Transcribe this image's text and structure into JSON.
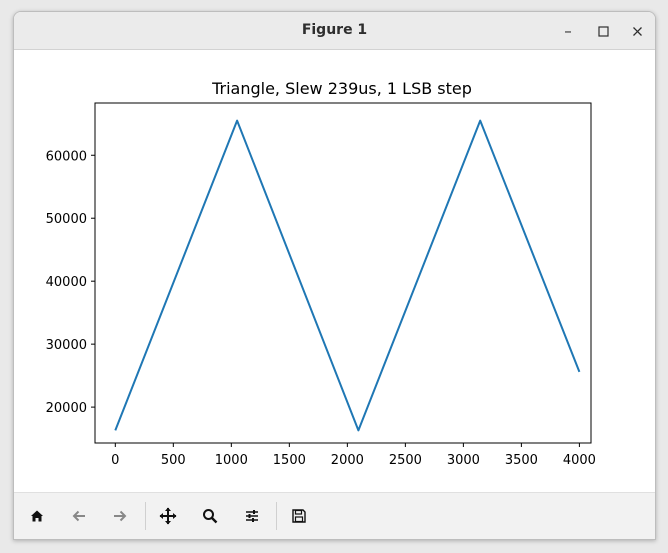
{
  "window": {
    "title": "Figure 1"
  },
  "titlebar_buttons": {
    "minimize": "–",
    "maximize": "☐",
    "close": "✕"
  },
  "toolbar": {
    "buttons": [
      "home-icon",
      "back-arrow-icon",
      "forward-arrow-icon",
      "pan-move-icon",
      "zoom-magnifier-icon",
      "configure-subplots-icon",
      "save-floppy-icon"
    ]
  },
  "chart_data": {
    "type": "line",
    "title": "Triangle, Slew 239us, 1 LSB step",
    "xlabel": "",
    "ylabel": "",
    "xlim": [
      -175,
      4100
    ],
    "ylim": [
      14300,
      68300
    ],
    "xticks": [
      0,
      500,
      1000,
      1500,
      2000,
      2500,
      3000,
      3500,
      4000
    ],
    "yticks": [
      20000,
      30000,
      40000,
      50000,
      60000
    ],
    "grid": false,
    "color": "#1f77b4",
    "series": [
      {
        "x": [
          0,
          1050,
          2095,
          3145,
          4000
        ],
        "y": [
          16300,
          65500,
          16300,
          65500,
          25600
        ]
      }
    ]
  }
}
